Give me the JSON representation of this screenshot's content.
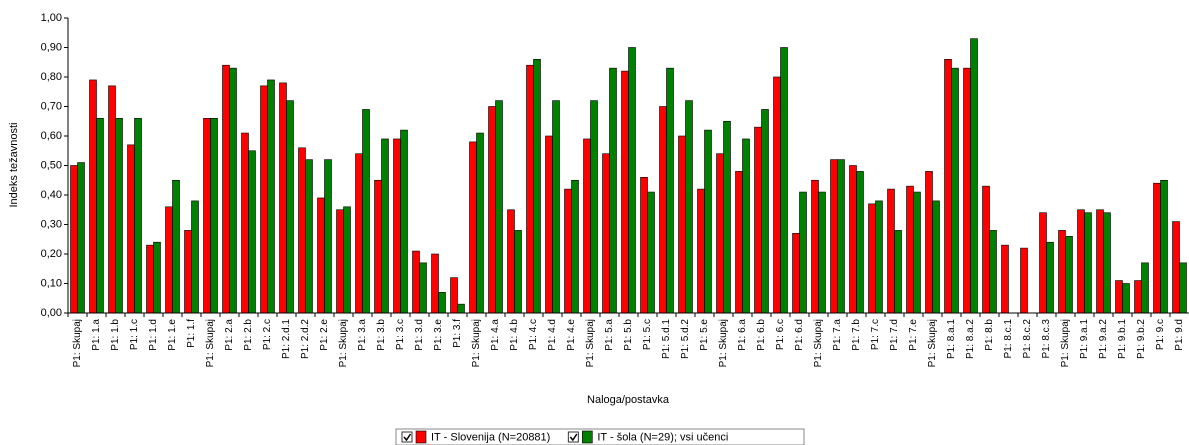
{
  "chart_data": {
    "type": "bar",
    "y_axis_label": "Indeks težavnosti",
    "x_axis_label": "Naloga/postavka",
    "categories": [
      "P1: Skupaj",
      "P1: 1.a",
      "P1: 1.b",
      "P1: 1.c",
      "P1: 1.d",
      "P1: 1.e",
      "P1: 1.f",
      "P1: Skupaj",
      "P1: 2.a",
      "P1: 2.b",
      "P1: 2.c",
      "P1: 2.d.1",
      "P1: 2.d.2",
      "P1: 2.e",
      "P1: Skupaj",
      "P1: 3.a",
      "P1: 3.b",
      "P1: 3.c",
      "P1: 3.d",
      "P1: 3.e",
      "P1: 3.f",
      "P1: Skupaj",
      "P1: 4.a",
      "P1: 4.b",
      "P1: 4.c",
      "P1: 4.d",
      "P1: 4.e",
      "P1: Skupaj",
      "P1: 5.a",
      "P1: 5.b",
      "P1: 5.c",
      "P1: 5.d.1",
      "P1: 5.d.2",
      "P1: 5.e",
      "P1: Skupaj",
      "P1: 6.a",
      "P1: 6.b",
      "P1: 6.c",
      "P1: 6.d",
      "P1: Skupaj",
      "P1: 7.a",
      "P1: 7.b",
      "P1: 7.c",
      "P1: 7.d",
      "P1: 7.e",
      "P1: Skupaj",
      "P1: 8.a.1",
      "P1: 8.a.2",
      "P1: 8.b",
      "P1: 8.c.1",
      "P1: 8.c.2",
      "P1: 8.c.3",
      "P1: Skupaj",
      "P1: 9.a.1",
      "P1: 9.a.2",
      "P1: 9.b.1",
      "P1: 9.b.2",
      "P1: 9.c",
      "P1: 9.d"
    ],
    "series": [
      {
        "name": "IT - Slovenija (N=20881)",
        "color": "#ff0000",
        "values": [
          0.5,
          0.79,
          0.77,
          0.57,
          0.23,
          0.36,
          0.28,
          0.66,
          0.84,
          0.61,
          0.77,
          0.78,
          0.56,
          0.39,
          0.35,
          0.54,
          0.45,
          0.59,
          0.21,
          0.2,
          0.12,
          0.58,
          0.7,
          0.35,
          0.84,
          0.6,
          0.42,
          0.59,
          0.54,
          0.82,
          0.46,
          0.7,
          0.6,
          0.42,
          0.54,
          0.48,
          0.63,
          0.8,
          0.27,
          0.45,
          0.52,
          0.5,
          0.37,
          0.42,
          0.43,
          0.48,
          0.86,
          0.83,
          0.43,
          0.23,
          0.22,
          0.34,
          0.28,
          0.35,
          0.35,
          0.11,
          0.11,
          0.44,
          0.31
        ]
      },
      {
        "name": "IT - šola (N=29); vsi učenci",
        "color": "#008000",
        "values": [
          0.51,
          0.66,
          0.66,
          0.66,
          0.24,
          0.45,
          0.38,
          0.66,
          0.83,
          0.55,
          0.79,
          0.72,
          0.52,
          0.52,
          0.36,
          0.69,
          0.59,
          0.62,
          0.17,
          0.07,
          0.03,
          0.61,
          0.72,
          0.28,
          0.86,
          0.72,
          0.45,
          0.72,
          0.83,
          0.9,
          0.41,
          0.83,
          0.72,
          0.62,
          0.65,
          0.59,
          0.69,
          0.9,
          0.41,
          0.41,
          0.52,
          0.48,
          0.38,
          0.28,
          0.41,
          0.38,
          0.83,
          0.93,
          0.28,
          0,
          0,
          0.24,
          0.26,
          0.34,
          0.34,
          0.1,
          0.17,
          0.45,
          0.17
        ]
      }
    ],
    "ylim": [
      0,
      1
    ],
    "yticks": [
      {
        "value": 0,
        "label": "0,00"
      },
      {
        "value": 0.1,
        "label": "0,10"
      },
      {
        "value": 0.2,
        "label": "0,20"
      },
      {
        "value": 0.3,
        "label": "0,30"
      },
      {
        "value": 0.4,
        "label": "0,40"
      },
      {
        "value": 0.5,
        "label": "0,50"
      },
      {
        "value": 0.6,
        "label": "0,60"
      },
      {
        "value": 0.7,
        "label": "0,70"
      },
      {
        "value": 0.8,
        "label": "0,80"
      },
      {
        "value": 0.9,
        "label": "0,90"
      },
      {
        "value": 1,
        "label": "1,00"
      }
    ],
    "grid": false
  }
}
